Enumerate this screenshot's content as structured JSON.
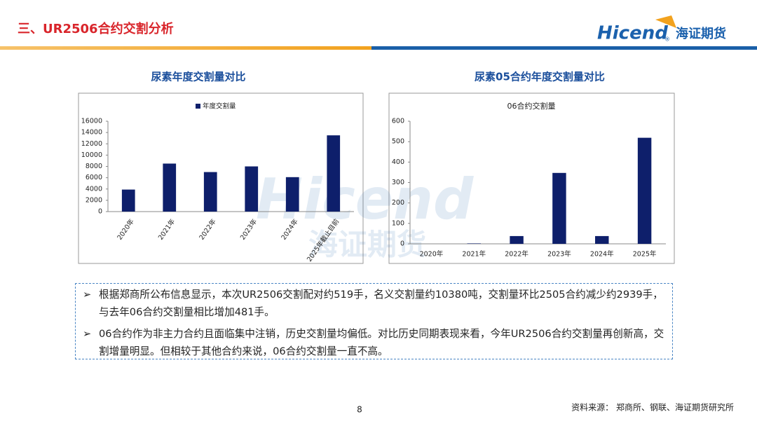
{
  "header": {
    "title": "三、UR2506合约交割分析",
    "logo": "Hicend",
    "logo_suffix": "®",
    "company": "海证期货"
  },
  "chart_data": [
    {
      "type": "bar",
      "title": "尿素年度交割量对比",
      "categories": [
        "2020年",
        "2021年",
        "2022年",
        "2023年",
        "2024年",
        "2025年截止目前"
      ],
      "series": [
        {
          "name": "年度交割量",
          "color": "#0e1f6b",
          "values": [
            3900,
            8500,
            7000,
            8000,
            6100,
            13500
          ]
        }
      ],
      "ylim": [
        0,
        16000
      ],
      "yticks": [
        0,
        2000,
        4000,
        6000,
        8000,
        10000,
        12000,
        14000,
        16000
      ],
      "legend": "top"
    },
    {
      "type": "bar",
      "title": "尿素05合约年度交割量对比",
      "categories": [
        "2020年",
        "2021年",
        "2022年",
        "2023年",
        "2024年",
        "2025年"
      ],
      "series": [
        {
          "name": "06合约交割量",
          "color": "#0e1f6b",
          "values": [
            0,
            2,
            38,
            347,
            38,
            519
          ]
        }
      ],
      "ylim": [
        0,
        600
      ],
      "yticks": [
        0,
        100,
        200,
        300,
        400,
        500,
        600
      ],
      "legend": "top"
    }
  ],
  "bullets": [
    "根据郑商所公布信息显示，本次UR2506交割配对约519手，名义交割量约10380吨，交割量环比2505合约减少约2939手，与去年06合约交割量相比增加481手。",
    "06合约作为非主力合约且面临集中注销，历史交割量均偏低。对比历史同期表现来看，今年UR2506合约交割量再创新高，交割增量明显。但相较于其他合约来说，06合约交割量一直不高。"
  ],
  "footer": {
    "page": "8",
    "source": "资料来源：  郑商所、钢联、海证期货研究所"
  }
}
